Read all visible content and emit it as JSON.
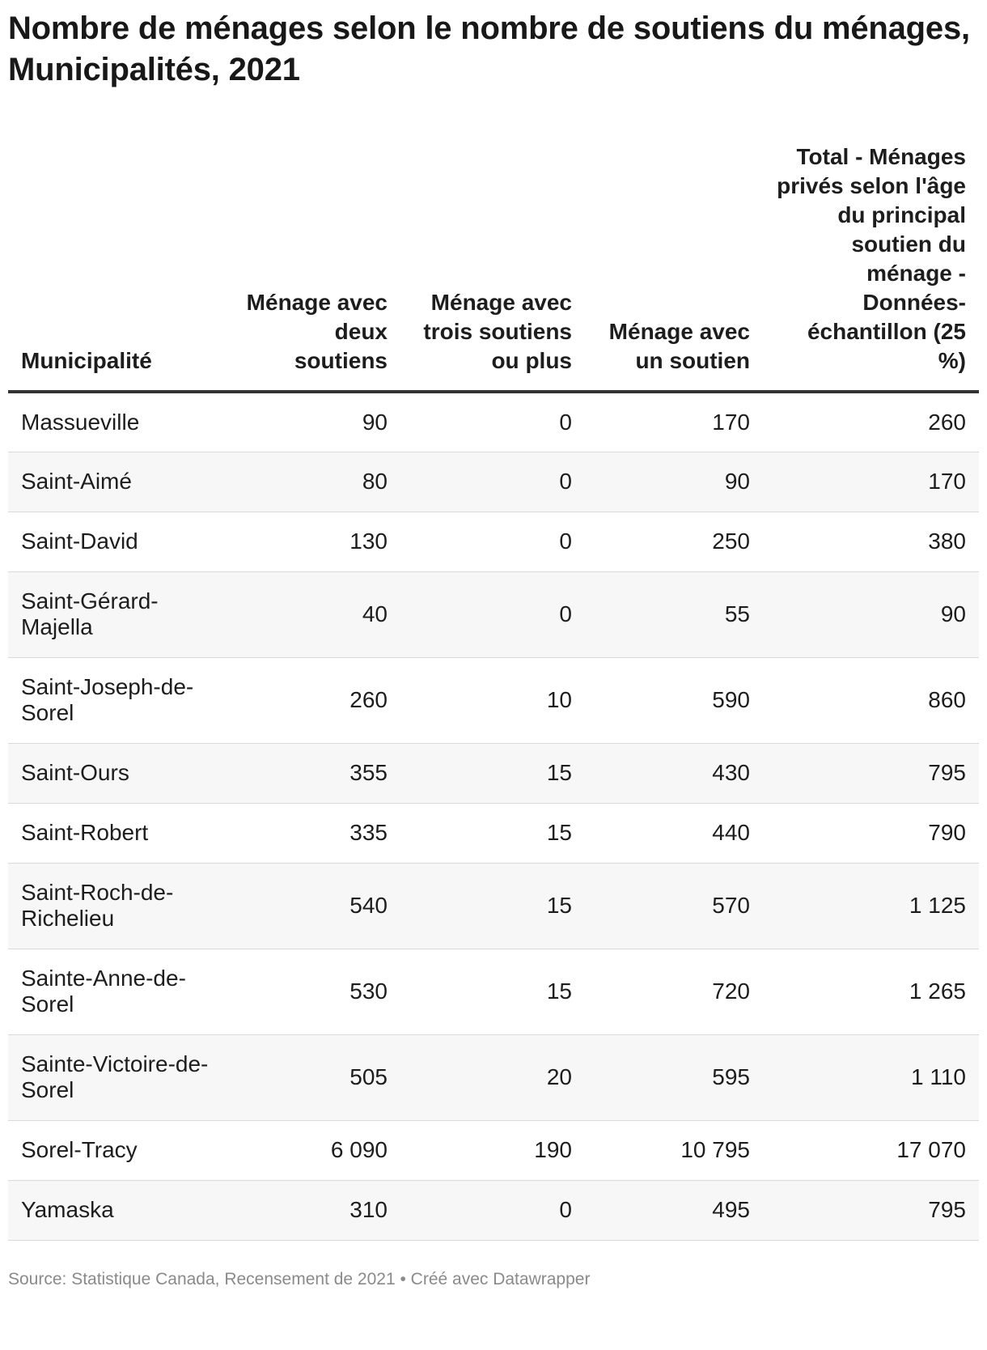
{
  "title": "Nombre de ménages selon le nombre de soutiens du ménages, Municipalités, 2021",
  "source": "Source: Statistique Canada, Recensement de 2021 • Créé avec Datawrapper",
  "chart_data": {
    "type": "table",
    "title": "Nombre de ménages selon le nombre de soutiens du ménages, Municipalités, 2021",
    "columns": [
      "Municipalité",
      "Ménage avec deux soutiens",
      "Ménage avec trois soutiens ou plus",
      "Ménage avec un soutien",
      "Total - Ménages privés selon l'âge du principal soutien du ménage - Données-échantillon (25 %)"
    ],
    "rows": [
      {
        "name": "Massueville",
        "values": [
          "90",
          "0",
          "170",
          "260"
        ]
      },
      {
        "name": "Saint-Aimé",
        "values": [
          "80",
          "0",
          "90",
          "170"
        ]
      },
      {
        "name": "Saint-David",
        "values": [
          "130",
          "0",
          "250",
          "380"
        ]
      },
      {
        "name": "Saint-Gérard-Majella",
        "values": [
          "40",
          "0",
          "55",
          "90"
        ]
      },
      {
        "name": "Saint-Joseph-de-Sorel",
        "values": [
          "260",
          "10",
          "590",
          "860"
        ]
      },
      {
        "name": "Saint-Ours",
        "values": [
          "355",
          "15",
          "430",
          "795"
        ]
      },
      {
        "name": "Saint-Robert",
        "values": [
          "335",
          "15",
          "440",
          "790"
        ]
      },
      {
        "name": "Saint-Roch-de-Richelieu",
        "values": [
          "540",
          "15",
          "570",
          "1 125"
        ]
      },
      {
        "name": "Sainte-Anne-de-Sorel",
        "values": [
          "530",
          "15",
          "720",
          "1 265"
        ]
      },
      {
        "name": "Sainte-Victoire-de-Sorel",
        "values": [
          "505",
          "20",
          "595",
          "1 110"
        ]
      },
      {
        "name": "Sorel-Tracy",
        "values": [
          "6 090",
          "190",
          "10 795",
          "17 070"
        ]
      },
      {
        "name": "Yamaska",
        "values": [
          "310",
          "0",
          "495",
          "795"
        ]
      }
    ]
  }
}
